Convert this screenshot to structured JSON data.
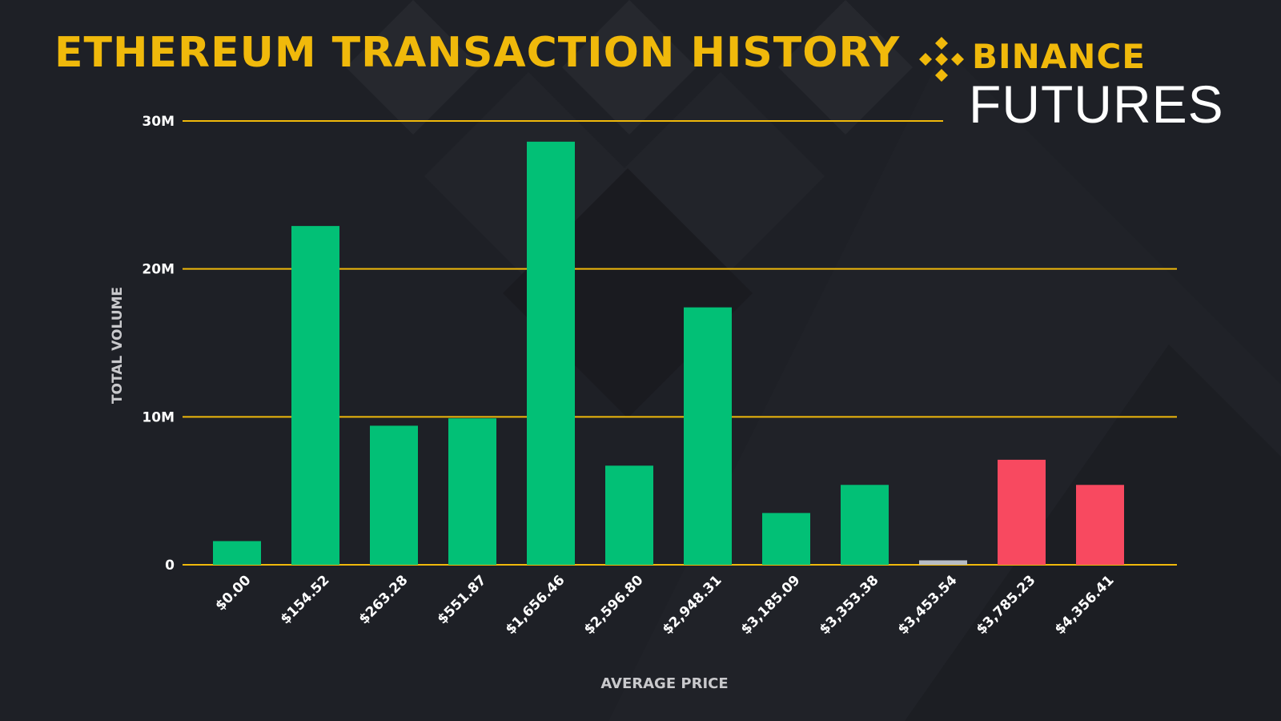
{
  "colors": {
    "background": "#1e2026",
    "accent": "#f0b90b",
    "bar_green": "#02c076",
    "bar_red": "#f84960",
    "bar_gray": "#b7bdc6",
    "text": "#ffffff"
  },
  "header": {
    "title": "ETHEREUM TRANSACTION HISTORY",
    "logo": {
      "brand": "BINANCE",
      "product": "FUTURES",
      "icon": "binance-diamond-icon"
    }
  },
  "chart_data": {
    "type": "bar",
    "title": "ETHEREUM TRANSACTION HISTORY",
    "xlabel": "AVERAGE PRICE",
    "ylabel": "TOTAL VOLUME",
    "ylim": [
      0,
      30000000
    ],
    "yticks": [
      {
        "value": 0,
        "label": "0"
      },
      {
        "value": 10000000,
        "label": "10M"
      },
      {
        "value": 20000000,
        "label": "20M"
      },
      {
        "value": 30000000,
        "label": "30M"
      }
    ],
    "grid": true,
    "categories": [
      "$0.00",
      "$154.52",
      "$263.28",
      "$551.87",
      "$1,656.46",
      "$2,596.80",
      "$2,948.31",
      "$3,185.09",
      "$3,353.38",
      "$3,453.54",
      "$3,785.23",
      "$4,356.41"
    ],
    "values": [
      1600000,
      22900000,
      9400000,
      9900000,
      28600000,
      6700000,
      17400000,
      3500000,
      5400000,
      300000,
      7100000,
      5400000
    ],
    "bar_colors": [
      "#02c076",
      "#02c076",
      "#02c076",
      "#02c076",
      "#02c076",
      "#02c076",
      "#02c076",
      "#02c076",
      "#02c076",
      "#b7bdc6",
      "#f84960",
      "#f84960"
    ]
  }
}
